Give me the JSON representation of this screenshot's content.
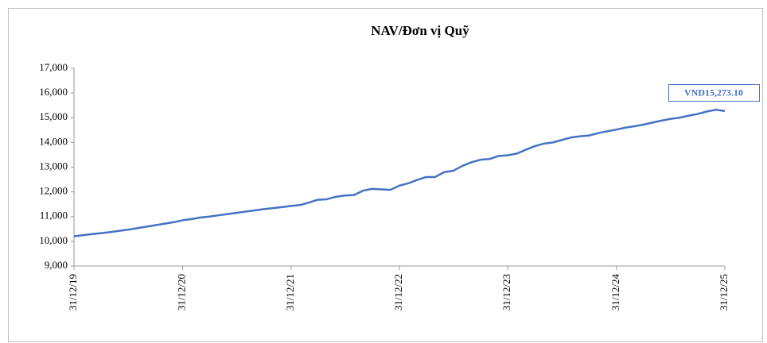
{
  "chart_data": {
    "type": "line",
    "title": "NAV/Đơn vị Quỹ",
    "x": [
      "31/12/19",
      "31/01/20",
      "29/02/20",
      "31/03/20",
      "30/04/20",
      "31/05/20",
      "30/06/20",
      "31/07/20",
      "31/08/20",
      "30/09/20",
      "31/10/20",
      "30/11/20",
      "31/12/20",
      "31/01/21",
      "28/02/21",
      "31/03/21",
      "30/04/21",
      "31/05/21",
      "30/06/21",
      "31/07/21",
      "31/08/21",
      "30/09/21",
      "31/10/21",
      "30/11/21",
      "31/12/21",
      "31/01/22",
      "28/02/22",
      "31/03/22",
      "30/04/22",
      "31/05/22",
      "30/06/22",
      "31/07/22",
      "31/08/22",
      "30/09/22",
      "31/10/22",
      "30/11/22",
      "31/12/22",
      "31/01/23",
      "28/02/23",
      "31/03/23",
      "30/04/23",
      "31/05/23",
      "30/06/23",
      "31/07/23",
      "31/08/23",
      "30/09/23",
      "31/10/23",
      "30/11/23",
      "31/12/23",
      "31/01/24",
      "29/02/24",
      "31/03/24",
      "30/04/24",
      "31/05/24",
      "30/06/24",
      "31/07/24",
      "31/08/24",
      "30/09/24",
      "31/10/24",
      "30/11/24",
      "31/12/24",
      "31/01/25",
      "28/02/25",
      "31/03/25",
      "30/04/25",
      "31/05/25",
      "30/06/25",
      "31/07/25",
      "31/08/25",
      "30/09/25",
      "31/10/25",
      "30/11/25",
      "31/12/25"
    ],
    "series": [
      {
        "name": "NAV/Đơn vị Quỹ",
        "color": "#4472c4",
        "values": [
          10200,
          10250,
          10290,
          10330,
          10370,
          10420,
          10470,
          10530,
          10590,
          10650,
          10710,
          10770,
          10850,
          10900,
          10960,
          11000,
          11050,
          11100,
          11150,
          11200,
          11250,
          11300,
          11340,
          11380,
          11430,
          11470,
          11560,
          11680,
          11700,
          11800,
          11850,
          11870,
          12050,
          12120,
          12100,
          12080,
          12250,
          12350,
          12480,
          12600,
          12600,
          12800,
          12850,
          13050,
          13200,
          13300,
          13330,
          13450,
          13480,
          13550,
          13700,
          13850,
          13950,
          14000,
          14100,
          14200,
          14250,
          14280,
          14380,
          14450,
          14520,
          14600,
          14650,
          14720,
          14800,
          14880,
          14950,
          15000,
          15080,
          15150,
          15250,
          15320,
          15273.1
        ]
      }
    ],
    "end_label": "VND15,273.10",
    "xlim": [
      "31/12/19",
      "31/12/25"
    ],
    "xticks": [
      "31/12/19",
      "31/12/20",
      "31/12/21",
      "31/12/22",
      "31/12/23",
      "31/12/24",
      "31/12/25"
    ],
    "ylim": [
      9000,
      17000
    ],
    "yticks": [
      {
        "value": 9000,
        "label": "9,000"
      },
      {
        "value": 10000,
        "label": "10,000"
      },
      {
        "value": 11000,
        "label": "11,000"
      },
      {
        "value": 12000,
        "label": "12,000"
      },
      {
        "value": 13000,
        "label": "13,000"
      },
      {
        "value": 14000,
        "label": "14,000"
      },
      {
        "value": 15000,
        "label": "15,000"
      },
      {
        "value": 16000,
        "label": "16,000"
      },
      {
        "value": 17000,
        "label": "17,000"
      }
    ],
    "grid": false
  }
}
